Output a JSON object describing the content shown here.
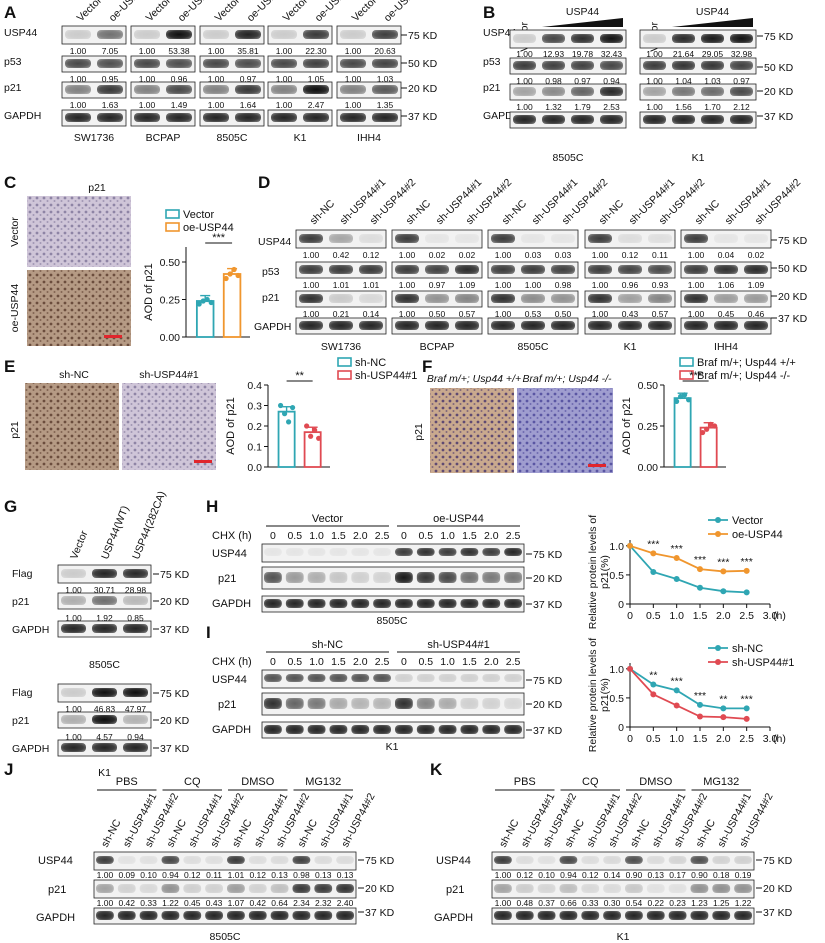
{
  "panel_letters": [
    "A",
    "B",
    "C",
    "D",
    "E",
    "F",
    "G",
    "H",
    "I",
    "J",
    "K"
  ],
  "kd": {
    "k75": "75 KD",
    "k50": "50 KD",
    "k20": "20 KD",
    "k37": "37 KD"
  },
  "rows": {
    "usp44": "USP44",
    "p53": "p53",
    "p21": "p21",
    "gapdh": "GAPDH",
    "flag": "Flag"
  },
  "panel_a": {
    "lanes": [
      "Vector",
      "oe-USP44"
    ],
    "blocks": [
      {
        "cell": "SW1736",
        "usp44": [
          "1.00",
          "7.05"
        ],
        "p53": [
          "1.00",
          "0.95"
        ],
        "p21": [
          "1.00",
          "1.63"
        ]
      },
      {
        "cell": "BCPAP",
        "usp44": [
          "1.00",
          "53.38"
        ],
        "p53": [
          "1.00",
          "0.96"
        ],
        "p21": [
          "1.00",
          "1.49"
        ]
      },
      {
        "cell": "8505C",
        "usp44": [
          "1.00",
          "35.81"
        ],
        "p53": [
          "1.00",
          "0.97"
        ],
        "p21": [
          "1.00",
          "1.64"
        ]
      },
      {
        "cell": "K1",
        "usp44": [
          "1.00",
          "22.30"
        ],
        "p53": [
          "1.00",
          "1.05"
        ],
        "p21": [
          "1.00",
          "2.47"
        ]
      },
      {
        "cell": "IHH4",
        "usp44": [
          "1.00",
          "20.63"
        ],
        "p53": [
          "1.00",
          "1.03"
        ],
        "p21": [
          "1.00",
          "1.35"
        ]
      }
    ]
  },
  "panel_b": {
    "vector_label": "Vector",
    "usp44_label": "USP44",
    "blocks": [
      {
        "cell": "8505C",
        "usp44": [
          "1.00",
          "12.93",
          "19.78",
          "32.43"
        ],
        "p53": [
          "1.00",
          "0.98",
          "0.97",
          "0.94"
        ],
        "p21": [
          "1.00",
          "1.32",
          "1.79",
          "2.53"
        ]
      },
      {
        "cell": "K1",
        "usp44": [
          "1.00",
          "21.64",
          "29.05",
          "32.98"
        ],
        "p53": [
          "1.00",
          "1.04",
          "1.03",
          "0.97"
        ],
        "p21": [
          "1.00",
          "1.56",
          "1.70",
          "2.12"
        ]
      }
    ]
  },
  "panel_c": {
    "img_title": "p21",
    "side": [
      "Vector",
      "oe-USP44"
    ],
    "chart_data": {
      "type": "bar",
      "series": [
        {
          "name": "Vector",
          "value": 0.24,
          "points": [
            0.22,
            0.24,
            0.25,
            0.23
          ]
        },
        {
          "name": "oe-USP44",
          "value": 0.42,
          "points": [
            0.39,
            0.42,
            0.45,
            0.41
          ]
        }
      ],
      "ylabel": "AOD of p21",
      "ylim": [
        0,
        0.6
      ],
      "yticks": [
        "0.00",
        "0.25",
        "0.50"
      ],
      "sig": "***",
      "colors": [
        "#2fa6b3",
        "#f0962e"
      ]
    }
  },
  "panel_d": {
    "lanes": [
      "sh-NC",
      "sh-USP44#1",
      "sh-USP44#2"
    ],
    "blocks": [
      {
        "cell": "SW1736",
        "usp44": [
          "1.00",
          "0.42",
          "0.12"
        ],
        "p53": [
          "1.00",
          "1.01",
          "1.01"
        ],
        "p21": [
          "1.00",
          "0.21",
          "0.14"
        ]
      },
      {
        "cell": "BCPAP",
        "usp44": [
          "1.00",
          "0.02",
          "0.02"
        ],
        "p53": [
          "1.00",
          "0.97",
          "1.09"
        ],
        "p21": [
          "1.00",
          "0.50",
          "0.57"
        ]
      },
      {
        "cell": "8505C",
        "usp44": [
          "1.00",
          "0.03",
          "0.03"
        ],
        "p53": [
          "1.00",
          "1.00",
          "0.98"
        ],
        "p21": [
          "1.00",
          "0.53",
          "0.50"
        ]
      },
      {
        "cell": "K1",
        "usp44": [
          "1.00",
          "0.12",
          "0.11"
        ],
        "p53": [
          "1.00",
          "0.96",
          "0.93"
        ],
        "p21": [
          "1.00",
          "0.43",
          "0.57"
        ]
      },
      {
        "cell": "IHH4",
        "usp44": [
          "1.00",
          "0.04",
          "0.02"
        ],
        "p53": [
          "1.00",
          "1.06",
          "1.09"
        ],
        "p21": [
          "1.00",
          "0.45",
          "0.46"
        ]
      }
    ]
  },
  "panel_e": {
    "labels": [
      "sh-NC",
      "sh-USP44#1"
    ],
    "side": "p21",
    "chart_data": {
      "type": "bar",
      "series": [
        {
          "name": "sh-NC",
          "value": 0.27,
          "points": [
            0.3,
            0.26,
            0.22,
            0.29
          ]
        },
        {
          "name": "sh-USP44#1",
          "value": 0.17,
          "points": [
            0.2,
            0.15,
            0.18,
            0.14
          ]
        }
      ],
      "ylabel": "AOD of p21",
      "ylim": [
        0,
        0.4
      ],
      "yticks": [
        "0.0",
        "0.1",
        "0.2",
        "0.3",
        "0.4"
      ],
      "sig": "**",
      "colors": [
        "#2fa6b3",
        "#e04a52"
      ]
    }
  },
  "panel_f": {
    "img_labels": [
      "Braf m/+; Usp44 +/+",
      "Braf m/+; Usp44 -/-"
    ],
    "side": "p21",
    "chart_data": {
      "type": "bar",
      "series": [
        {
          "name": "Braf m/+; Usp44 +/+",
          "value": 0.42,
          "points": [
            0.4,
            0.43,
            0.44,
            0.41
          ]
        },
        {
          "name": "Braf m/+; Usp44 -/-",
          "value": 0.24,
          "points": [
            0.21,
            0.23,
            0.26,
            0.25
          ]
        }
      ],
      "ylabel": "AOD of p21",
      "ylim": [
        0,
        0.5
      ],
      "yticks": [
        "0.00",
        "0.25",
        "0.50"
      ],
      "sig": "***",
      "colors": [
        "#2fa6b3",
        "#e04a52"
      ]
    }
  },
  "panel_g": {
    "lanes": [
      "Vector",
      "USP44(WT)",
      "USP44(282CA)"
    ],
    "blocks": [
      {
        "cell": "8505C",
        "flag": [
          "1.00",
          "30.71",
          "28.98"
        ],
        "p21": [
          "1.00",
          "1.92",
          "0.85"
        ]
      },
      {
        "cell": "K1",
        "flag": [
          "1.00",
          "46.83",
          "47.97"
        ],
        "p21": [
          "1.00",
          "4.57",
          "0.94"
        ]
      }
    ]
  },
  "panel_h": {
    "chx": "CHX (h)",
    "groups": [
      "Vector",
      "oe-USP44"
    ],
    "times": [
      "0",
      "0.5",
      "1.0",
      "1.5",
      "2.0",
      "2.5"
    ],
    "cell": "8505C"
  },
  "panel_i": {
    "chx": "CHX (h)",
    "groups": [
      "sh-NC",
      "sh-USP44#1"
    ],
    "times": [
      "0",
      "0.5",
      "1.0",
      "1.5",
      "2.0",
      "2.5"
    ],
    "cell": "K1"
  },
  "chart_h": {
    "type": "line",
    "x": [
      0,
      0.5,
      1.0,
      1.5,
      2.0,
      2.5
    ],
    "series": [
      {
        "name": "Vector",
        "values": [
          1.0,
          0.55,
          0.43,
          0.28,
          0.22,
          0.2
        ],
        "color": "#2fa6b3"
      },
      {
        "name": "oe-USP44",
        "values": [
          1.0,
          0.87,
          0.79,
          0.6,
          0.56,
          0.57
        ],
        "color": "#f0962e"
      }
    ],
    "ylabel": "Relative protein levels of p21(%)",
    "xlabel": "(h)",
    "xticks": [
      "0",
      "0.5",
      "1.0",
      "1.5",
      "2.0",
      "2.5",
      "3.0"
    ],
    "yticks": [
      "0",
      "0.5",
      "1.0"
    ],
    "ylim": [
      0,
      1.1
    ],
    "xlim": [
      0,
      3
    ],
    "sig": [
      "***",
      "***",
      "***",
      "***",
      "***"
    ]
  },
  "chart_i": {
    "type": "line",
    "x": [
      0,
      0.5,
      1.0,
      1.5,
      2.0,
      2.5
    ],
    "series": [
      {
        "name": "sh-NC",
        "values": [
          1.0,
          0.73,
          0.63,
          0.38,
          0.32,
          0.32
        ],
        "color": "#2fa6b3"
      },
      {
        "name": "sh-USP44#1",
        "values": [
          1.0,
          0.56,
          0.37,
          0.18,
          0.17,
          0.14
        ],
        "color": "#e04a52"
      }
    ],
    "ylabel": "Relative protein levels of p21(%)",
    "xlabel": "(h)",
    "xticks": [
      "0",
      "0.5",
      "1.0",
      "1.5",
      "2.0",
      "2.5",
      "3.0"
    ],
    "yticks": [
      "0",
      "0.5",
      "1.0"
    ],
    "ylim": [
      0,
      1.1
    ],
    "xlim": [
      0,
      3
    ],
    "sig": [
      "**",
      "***",
      "***",
      "**",
      "***"
    ]
  },
  "panel_jk": {
    "groups": [
      "PBS",
      "CQ",
      "DMSO",
      "MG132"
    ],
    "lanes": [
      "sh-NC",
      "sh-USP44#1",
      "sh-USP44#2"
    ],
    "j": {
      "cell": "8505C",
      "usp44": [
        "1.00",
        "0.09",
        "0.10",
        "0.94",
        "0.12",
        "0.11",
        "1.01",
        "0.12",
        "0.13",
        "0.98",
        "0.13",
        "0.13"
      ],
      "p21": [
        "1.00",
        "0.42",
        "0.33",
        "1.22",
        "0.45",
        "0.43",
        "1.07",
        "0.42",
        "0.64",
        "2.34",
        "2.32",
        "2.40"
      ]
    },
    "k": {
      "cell": "K1",
      "usp44": [
        "1.00",
        "0.12",
        "0.10",
        "0.94",
        "0.12",
        "0.14",
        "0.90",
        "0.13",
        "0.17",
        "0.90",
        "0.18",
        "0.19"
      ],
      "p21": [
        "1.00",
        "0.48",
        "0.37",
        "0.66",
        "0.33",
        "0.30",
        "0.54",
        "0.22",
        "0.23",
        "1.23",
        "1.25",
        "1.22"
      ]
    }
  }
}
